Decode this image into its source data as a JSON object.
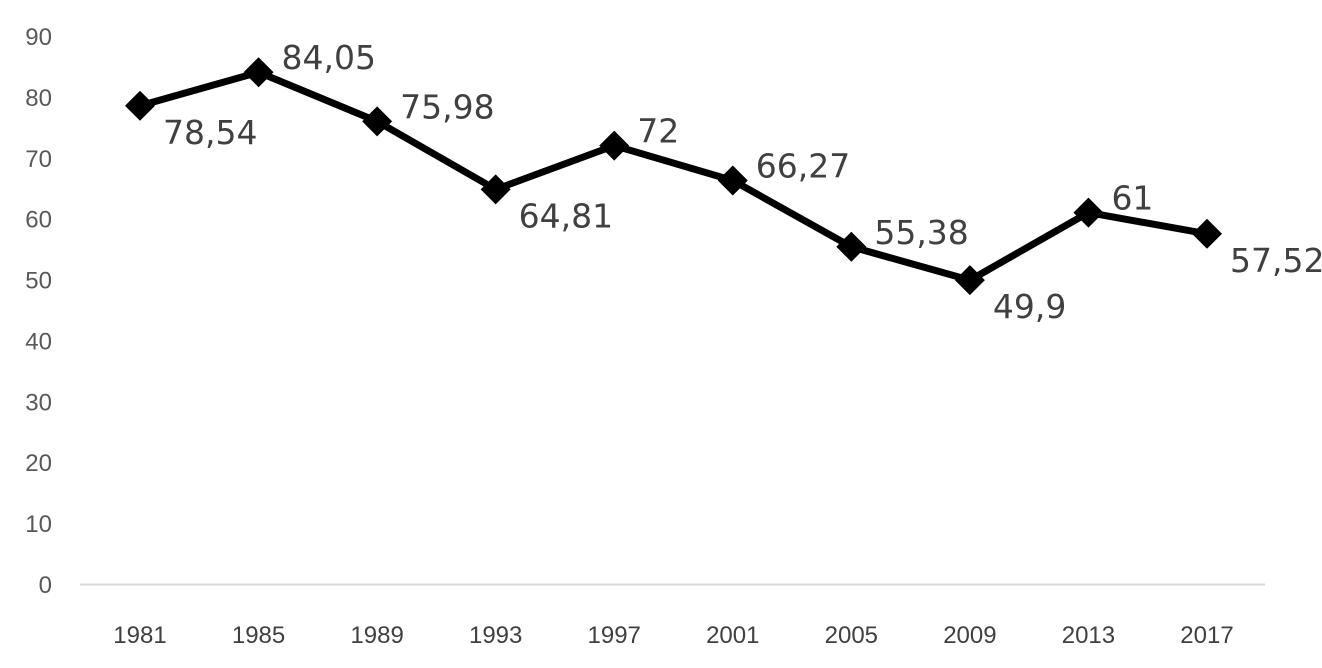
{
  "chart_data": {
    "type": "line",
    "title": "",
    "xlabel": "",
    "ylabel": "",
    "categories": [
      "1981",
      "1985",
      "1989",
      "1993",
      "1997",
      "2001",
      "2005",
      "2009",
      "2013",
      "2017"
    ],
    "series": [
      {
        "values": [
          78.54,
          84.05,
          75.98,
          64.81,
          72,
          66.27,
          55.38,
          49.9,
          61,
          57.52
        ],
        "data_labels": [
          "78,54",
          "84,05",
          "75,98",
          "64,81",
          "72",
          "66,27",
          "55,38",
          "49,9",
          "61",
          "57,52"
        ],
        "color": "#000000",
        "marker": "diamond"
      }
    ],
    "ylim": [
      0,
      90
    ],
    "yticks": [
      "0",
      "10",
      "20",
      "30",
      "40",
      "50",
      "60",
      "70",
      "80",
      "90"
    ],
    "grid": false,
    "legend": "none",
    "axis_color": "#d9d9d9"
  }
}
